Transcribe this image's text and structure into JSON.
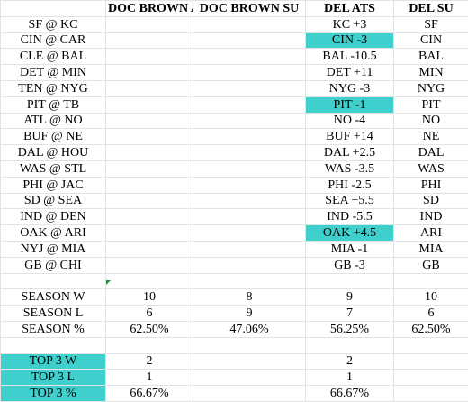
{
  "headers": [
    "",
    "DOC BROWN ATS",
    "DOC BROWN SU",
    "DEL ATS",
    "DEL SU"
  ],
  "games": [
    {
      "game": "SF @ KC",
      "doc_ats": "",
      "doc_su": "",
      "del_ats": "KC +3",
      "del_su": "SF",
      "highlight": false
    },
    {
      "game": "CIN @ CAR",
      "doc_ats": "",
      "doc_su": "",
      "del_ats": "CIN -3",
      "del_su": "CIN",
      "highlight": true
    },
    {
      "game": "CLE @ BAL",
      "doc_ats": "",
      "doc_su": "",
      "del_ats": "BAL -10.5",
      "del_su": "BAL",
      "highlight": false
    },
    {
      "game": "DET @ MIN",
      "doc_ats": "",
      "doc_su": "",
      "del_ats": "DET +11",
      "del_su": "MIN",
      "highlight": false
    },
    {
      "game": "TEN @ NYG",
      "doc_ats": "",
      "doc_su": "",
      "del_ats": "NYG -3",
      "del_su": "NYG",
      "highlight": false
    },
    {
      "game": "PIT @ TB",
      "doc_ats": "",
      "doc_su": "",
      "del_ats": "PIT -1",
      "del_su": "PIT",
      "highlight": true
    },
    {
      "game": "ATL @ NO",
      "doc_ats": "",
      "doc_su": "",
      "del_ats": "NO -4",
      "del_su": "NO",
      "highlight": false
    },
    {
      "game": "BUF @ NE",
      "doc_ats": "",
      "doc_su": "",
      "del_ats": "BUF +14",
      "del_su": "NE",
      "highlight": false
    },
    {
      "game": "DAL @ HOU",
      "doc_ats": "",
      "doc_su": "",
      "del_ats": "DAL +2.5",
      "del_su": "DAL",
      "highlight": false
    },
    {
      "game": "WAS @ STL",
      "doc_ats": "",
      "doc_su": "",
      "del_ats": "WAS -3.5",
      "del_su": "WAS",
      "highlight": false
    },
    {
      "game": "PHI @ JAC",
      "doc_ats": "",
      "doc_su": "",
      "del_ats": "PHI -2.5",
      "del_su": "PHI",
      "highlight": false
    },
    {
      "game": "SD @ SEA",
      "doc_ats": "",
      "doc_su": "",
      "del_ats": "SEA +5.5",
      "del_su": "SD",
      "highlight": false
    },
    {
      "game": "IND @ DEN",
      "doc_ats": "",
      "doc_su": "",
      "del_ats": "IND -5.5",
      "del_su": "IND",
      "highlight": false
    },
    {
      "game": "OAK @ ARI",
      "doc_ats": "",
      "doc_su": "",
      "del_ats": "OAK +4.5",
      "del_su": "ARI",
      "highlight": true
    },
    {
      "game": "NYJ @ MIA",
      "doc_ats": "",
      "doc_su": "",
      "del_ats": "MIA -1",
      "del_su": "MIA",
      "highlight": false
    },
    {
      "game": "GB @ CHI",
      "doc_ats": "",
      "doc_su": "",
      "del_ats": "GB -3",
      "del_su": "GB",
      "highlight": false
    }
  ],
  "season": [
    {
      "label": "SEASON W",
      "doc_ats": "10",
      "doc_su": "8",
      "del_ats": "9",
      "del_su": "10"
    },
    {
      "label": "SEASON L",
      "doc_ats": "6",
      "doc_su": "9",
      "del_ats": "7",
      "del_su": "6"
    },
    {
      "label": "SEASON %",
      "doc_ats": "62.50%",
      "doc_su": "47.06%",
      "del_ats": "56.25%",
      "del_su": "62.50%"
    }
  ],
  "top3": [
    {
      "label": "TOP 3 W",
      "doc_ats": "2",
      "doc_su": "",
      "del_ats": "2",
      "del_su": ""
    },
    {
      "label": "TOP 3 L",
      "doc_ats": "1",
      "doc_su": "",
      "del_ats": "1",
      "del_su": ""
    },
    {
      "label": "TOP 3 %",
      "doc_ats": "66.67%",
      "doc_su": "",
      "del_ats": "66.67%",
      "del_su": ""
    }
  ],
  "colors": {
    "highlight": "#3fcfcc",
    "gridline": "#e3e3e3",
    "corner_mark": "#1a8f3a"
  }
}
